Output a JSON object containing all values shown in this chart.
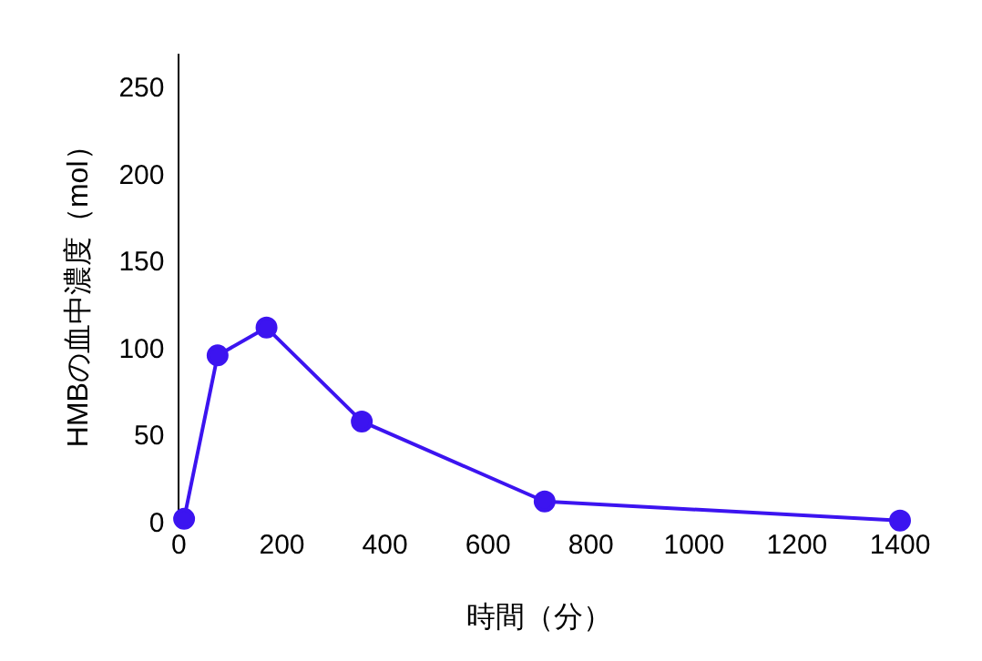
{
  "chart_data": {
    "type": "line",
    "xlabel": "時間（分）",
    "ylabel": "HMBの血中濃度（mol）",
    "x": [
      10,
      75,
      170,
      355,
      710,
      1400
    ],
    "series": [
      {
        "color": "#3c14f0",
        "values": [
          3,
          97,
          113,
          59,
          13,
          2
        ]
      }
    ],
    "xlim": [
      0,
      1400
    ],
    "xticks": [
      0,
      200,
      400,
      600,
      800,
      1000,
      1200,
      1400
    ],
    "ylim": [
      0,
      270
    ],
    "yticks": [
      0,
      50,
      100,
      150,
      200,
      250
    ],
    "grid": false,
    "legend": false,
    "marker": "circle",
    "line_style": "solid"
  }
}
